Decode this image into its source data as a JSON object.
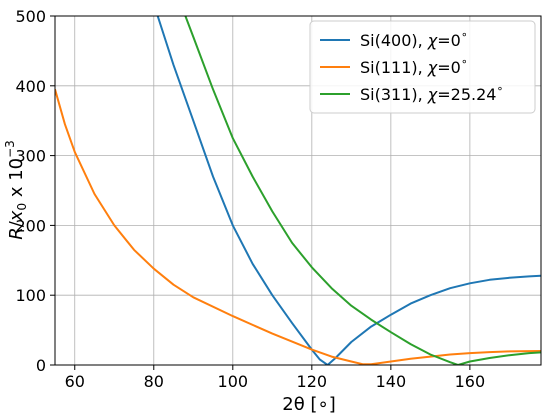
{
  "chart_data": {
    "type": "line",
    "title": "",
    "xlabel": "2θ [∘]",
    "ylabel_parts": {
      "R": "R",
      "slash": "/",
      "x": "x",
      "x_sub": "0",
      "times": " x 10",
      "exp": "−3"
    },
    "xlim": [
      55,
      178
    ],
    "ylim": [
      0,
      500
    ],
    "xticks": [
      60,
      80,
      100,
      120,
      140,
      160
    ],
    "yticks": [
      0,
      100,
      200,
      300,
      400,
      500
    ],
    "grid": true,
    "legend_position": "top-right",
    "series": [
      {
        "name_parts": [
          "Si(400), ",
          "χ",
          "=0",
          "∘"
        ],
        "color": "#1f77b4",
        "x": [
          81,
          85,
          90,
          95,
          100,
          105,
          110,
          115,
          120,
          122,
          124,
          126,
          130,
          135,
          140,
          145,
          150,
          155,
          160,
          165,
          170,
          175,
          178
        ],
        "y": [
          500,
          430,
          350,
          270,
          200,
          145,
          100,
          60,
          22,
          8,
          0,
          10,
          33,
          55,
          72,
          88,
          100,
          110,
          117,
          122,
          125,
          127,
          128
        ]
      },
      {
        "name_parts": [
          "Si(111), ",
          "χ",
          "=0",
          "∘"
        ],
        "color": "#ff7f0e",
        "x": [
          55,
          57.5,
          60,
          65,
          70,
          75,
          80,
          85,
          90,
          100,
          110,
          120,
          125,
          130,
          133,
          135,
          140,
          145,
          150,
          155,
          160,
          165,
          170,
          178
        ],
        "y": [
          395,
          345,
          305,
          245,
          200,
          165,
          138,
          115,
          97,
          70,
          45,
          22,
          12,
          5,
          1,
          1,
          5,
          9,
          12,
          15,
          17,
          18.5,
          19.5,
          20
        ]
      },
      {
        "name_parts": [
          "Si(311), ",
          "χ",
          "=25.24",
          "∘"
        ],
        "color": "#2ca02c",
        "x": [
          88,
          90,
          95,
          100,
          105,
          110,
          115,
          120,
          125,
          130,
          135,
          140,
          145,
          150,
          155,
          157,
          160,
          165,
          170,
          175,
          178
        ],
        "y": [
          500,
          470,
          395,
          325,
          270,
          220,
          175,
          140,
          110,
          85,
          65,
          47,
          30,
          15,
          4,
          0,
          5,
          10,
          14,
          17,
          18
        ]
      }
    ]
  }
}
